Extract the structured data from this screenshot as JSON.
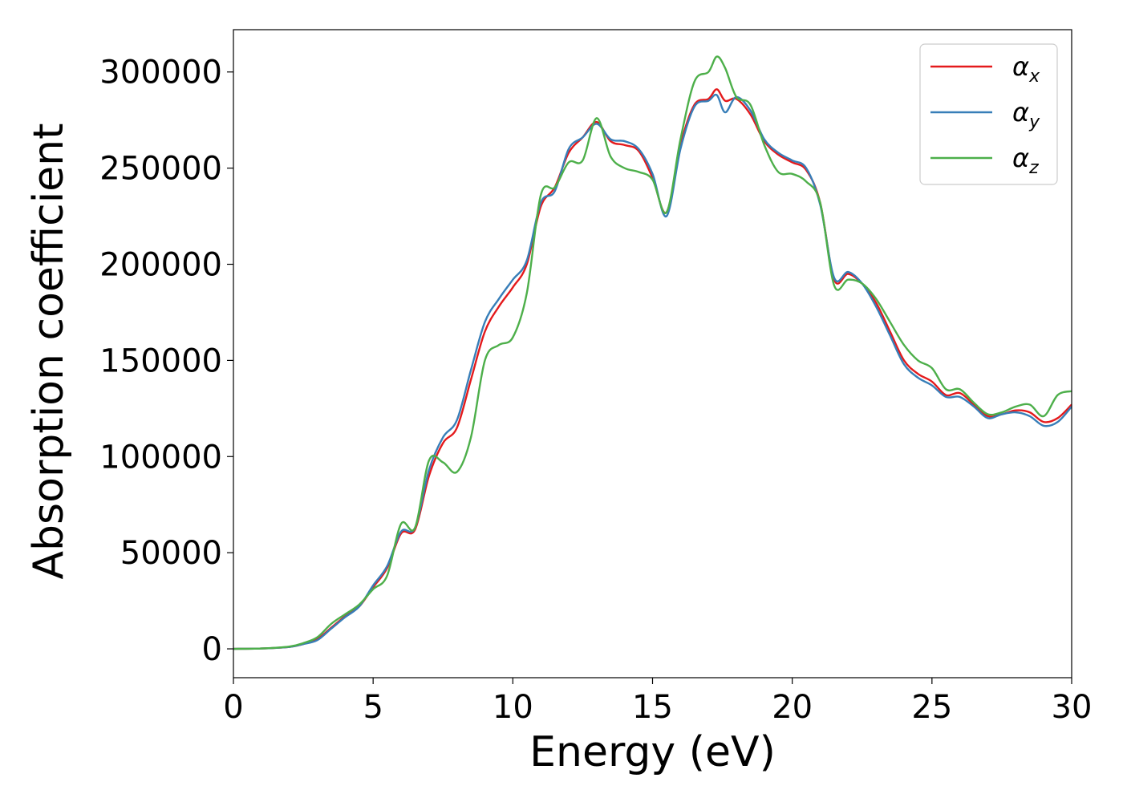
{
  "chart_data": {
    "type": "line",
    "xlabel": "Energy (eV)",
    "ylabel": "Absorption coefficient",
    "xlim": [
      0,
      30
    ],
    "ylim": [
      -15000,
      322000
    ],
    "x_ticks": [
      0,
      5,
      10,
      15,
      20,
      25,
      30
    ],
    "y_ticks": [
      0,
      50000,
      100000,
      150000,
      200000,
      250000,
      300000
    ],
    "grid": false,
    "legend_position": "top-right",
    "series": [
      {
        "name": "αx",
        "legend_base": "α",
        "legend_sub": "x",
        "color": "#e41a1c",
        "x": [
          0,
          1,
          2,
          2.5,
          3,
          3.5,
          4,
          4.5,
          5,
          5.5,
          6,
          6.5,
          7,
          7.5,
          8,
          8.5,
          9,
          9.5,
          10,
          10.5,
          11,
          11.5,
          12,
          12.5,
          13,
          13.5,
          14,
          14.5,
          15,
          15.5,
          16,
          16.5,
          17,
          17.3,
          17.6,
          18,
          18.5,
          19,
          19.5,
          20,
          20.5,
          21,
          21.5,
          22,
          22.5,
          23,
          23.5,
          24,
          24.5,
          25,
          25.5,
          26,
          26.5,
          27,
          27.5,
          28,
          28.5,
          29,
          29.5,
          30
        ],
        "y": [
          0,
          200,
          1000,
          2500,
          5000,
          11000,
          17000,
          22000,
          32000,
          42000,
          60000,
          62000,
          90000,
          107000,
          115000,
          140000,
          165000,
          178000,
          188000,
          200000,
          230000,
          240000,
          258000,
          266000,
          274000,
          264000,
          262000,
          259000,
          245000,
          227000,
          262000,
          283000,
          286000,
          291000,
          285000,
          286000,
          278000,
          264000,
          257000,
          253000,
          249000,
          232000,
          192000,
          195000,
          190000,
          180000,
          165000,
          150000,
          143000,
          139000,
          132000,
          133000,
          127000,
          121000,
          122000,
          124000,
          123000,
          118000,
          120000,
          127000
        ]
      },
      {
        "name": "αy",
        "legend_base": "α",
        "legend_sub": "y",
        "color": "#377eb8",
        "x": [
          0,
          1,
          2,
          2.5,
          3,
          3.5,
          4,
          4.5,
          5,
          5.5,
          6,
          6.5,
          7,
          7.5,
          8,
          8.5,
          9,
          9.5,
          10,
          10.5,
          11,
          11.5,
          12,
          12.5,
          13,
          13.5,
          14,
          14.5,
          15,
          15.5,
          16,
          16.5,
          17,
          17.3,
          17.6,
          18,
          18.5,
          19,
          19.5,
          20,
          20.5,
          21,
          21.5,
          22,
          22.5,
          23,
          23.5,
          24,
          24.5,
          25,
          25.5,
          26,
          26.5,
          27,
          27.5,
          28,
          28.5,
          29,
          29.5,
          30
        ],
        "y": [
          0,
          200,
          1000,
          2500,
          4500,
          10500,
          16500,
          22000,
          33000,
          43000,
          61000,
          63000,
          93000,
          110000,
          119000,
          145000,
          170000,
          182000,
          192000,
          202000,
          232000,
          238000,
          260000,
          266000,
          273000,
          265000,
          264000,
          260000,
          247000,
          225000,
          260000,
          282000,
          285000,
          288000,
          279000,
          287000,
          280000,
          265000,
          258000,
          254000,
          250000,
          231000,
          193000,
          196000,
          190000,
          178000,
          163000,
          148000,
          141000,
          137000,
          131000,
          131000,
          126000,
          120000,
          122000,
          123000,
          121000,
          116000,
          118000,
          126000
        ]
      },
      {
        "name": "αz",
        "legend_base": "α",
        "legend_sub": "z",
        "color": "#4daf4a",
        "x": [
          0,
          1,
          2,
          2.5,
          3,
          3.5,
          4,
          4.5,
          5,
          5.5,
          6,
          6.5,
          7,
          7.5,
          8,
          8.5,
          9,
          9.5,
          10,
          10.5,
          11,
          11.5,
          12,
          12.5,
          13,
          13.5,
          14,
          14.5,
          15,
          15.5,
          16,
          16.5,
          17,
          17.3,
          17.6,
          18,
          18.5,
          19,
          19.5,
          20,
          20.5,
          21,
          21.5,
          22,
          22.5,
          23,
          23.5,
          24,
          24.5,
          25,
          25.5,
          26,
          26.5,
          27,
          27.5,
          28,
          28.5,
          29,
          29.5,
          30
        ],
        "y": [
          0,
          200,
          1200,
          3000,
          6000,
          13000,
          18000,
          23000,
          31000,
          38000,
          65000,
          63000,
          98000,
          97000,
          92000,
          110000,
          150000,
          158000,
          162000,
          185000,
          236000,
          240000,
          253000,
          254000,
          276000,
          256000,
          250000,
          248000,
          244000,
          227000,
          265000,
          295000,
          300000,
          308000,
          302000,
          287000,
          283000,
          262000,
          248000,
          247000,
          243000,
          232000,
          189000,
          192000,
          190000,
          182000,
          170000,
          158000,
          150000,
          146000,
          135000,
          135000,
          128000,
          122000,
          123000,
          126000,
          127000,
          121000,
          132000,
          134000
        ]
      }
    ]
  }
}
